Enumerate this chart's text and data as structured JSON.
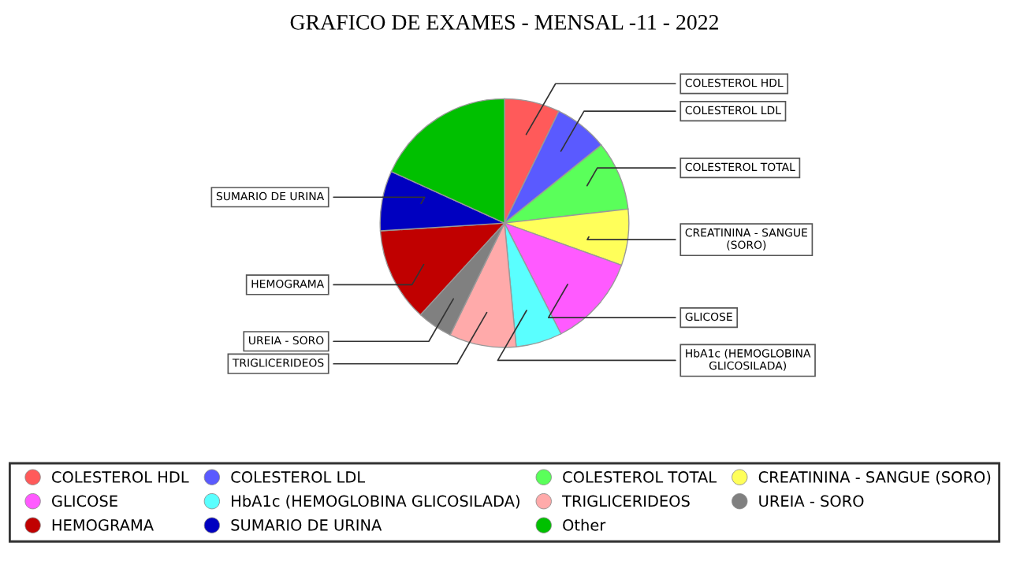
{
  "chart_data": {
    "type": "pie",
    "title": "GRAFICO DE EXAMES - MENSAL -11 - 2022",
    "categories": [
      "COLESTEROL HDL",
      "COLESTEROL LDL",
      "COLESTEROL TOTAL",
      "CREATININA - SANGUE (SORO)",
      "GLICOSE",
      "HbA1c (HEMOGLOBINA GLICOSILADA)",
      "TRIGLICERIDEOS",
      "UREIA - SORO",
      "HEMOGRAMA",
      "SUMARIO DE URINA",
      "Other"
    ],
    "values": [
      7.2,
      7.0,
      9.0,
      7.3,
      12.0,
      6.0,
      8.7,
      4.6,
      12.2,
      7.8,
      18.2
    ],
    "colors": [
      "#ff5a5a",
      "#5a5aff",
      "#5aff5a",
      "#ffff5a",
      "#ff5aff",
      "#5affff",
      "#ffaaaa",
      "#808080",
      "#c00000",
      "#0000c0",
      "#00c000"
    ],
    "annotations": [
      "COLESTEROL HDL",
      "COLESTEROL LDL",
      "COLESTEROL TOTAL",
      "CREATININA - SANGUE\n(SORO)",
      "GLICOSE",
      "HbA1c (HEMOGLOBINA\nGLICOSILADA)",
      "TRIGLICERIDEOS",
      "UREIA - SORO",
      "HEMOGRAMA",
      "SUMARIO DE URINA"
    ],
    "legend": "bottom"
  }
}
